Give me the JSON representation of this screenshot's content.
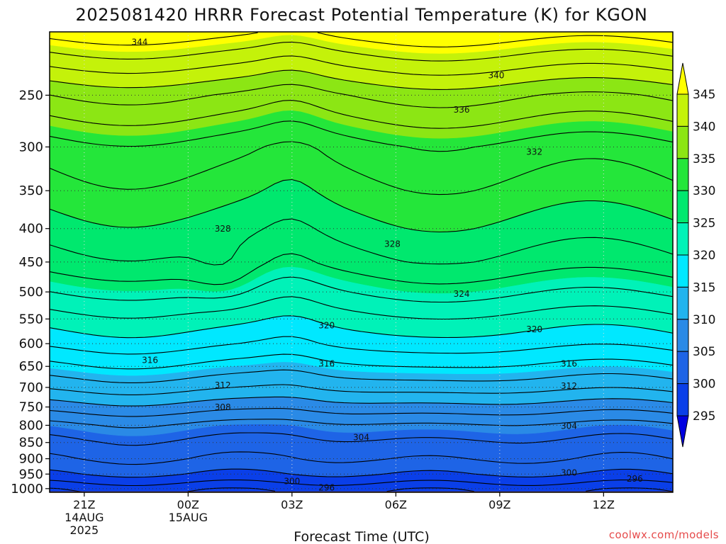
{
  "chart_data": {
    "type": "heatmap",
    "title": "2025081420 HRRR Forecast Potential Temperature (K) for KGON",
    "xlabel": "Forecast Time (UTC)",
    "ylabel": "",
    "x_ticks": [
      {
        "hour": 21,
        "label": "21Z",
        "sub1": "14AUG",
        "sub2": "2025"
      },
      {
        "hour": 24,
        "label": "00Z",
        "sub1": "15AUG",
        "sub2": ""
      },
      {
        "hour": 27,
        "label": "03Z",
        "sub1": "",
        "sub2": ""
      },
      {
        "hour": 30,
        "label": "06Z",
        "sub1": "",
        "sub2": ""
      },
      {
        "hour": 33,
        "label": "09Z",
        "sub1": "",
        "sub2": ""
      },
      {
        "hour": 36,
        "label": "12Z",
        "sub1": "",
        "sub2": ""
      }
    ],
    "xlim_hours": [
      20,
      38
    ],
    "y_scale": "log-pressure",
    "y_ticks": [
      250,
      300,
      350,
      400,
      450,
      500,
      550,
      600,
      650,
      700,
      750,
      800,
      850,
      900,
      950,
      1000
    ],
    "ylim_hpa": [
      200,
      1013
    ],
    "colorbar": {
      "levels": [
        295,
        300,
        305,
        310,
        315,
        320,
        325,
        330,
        335,
        340,
        345
      ],
      "colors": [
        "#0000e0",
        "#0a3fe8",
        "#1e64e6",
        "#2a8ae6",
        "#22b4ee",
        "#00e8ff",
        "#00f2b8",
        "#00e86e",
        "#24e63a",
        "#8ce614",
        "#c4f20a",
        "#ffff00"
      ]
    },
    "surface_color": "#a0522d",
    "contour_labels": [
      {
        "value": "344",
        "hour": 22.6,
        "p": 207
      },
      {
        "value": "340",
        "hour": 32.9,
        "p": 233
      },
      {
        "value": "336",
        "hour": 31.9,
        "p": 263
      },
      {
        "value": "332",
        "hour": 34.0,
        "p": 305
      },
      {
        "value": "328",
        "hour": 25.0,
        "p": 400
      },
      {
        "value": "328",
        "hour": 29.9,
        "p": 422
      },
      {
        "value": "324",
        "hour": 31.9,
        "p": 503
      },
      {
        "value": "320",
        "hour": 28.0,
        "p": 562
      },
      {
        "value": "320",
        "hour": 34.0,
        "p": 570
      },
      {
        "value": "316",
        "hour": 22.9,
        "p": 635
      },
      {
        "value": "316",
        "hour": 28.0,
        "p": 643
      },
      {
        "value": "316",
        "hour": 35.0,
        "p": 643
      },
      {
        "value": "312",
        "hour": 25.0,
        "p": 694
      },
      {
        "value": "312",
        "hour": 35.0,
        "p": 696
      },
      {
        "value": "308",
        "hour": 25.0,
        "p": 750
      },
      {
        "value": "304",
        "hour": 29.0,
        "p": 834
      },
      {
        "value": "304",
        "hour": 35.0,
        "p": 801
      },
      {
        "value": "300",
        "hour": 27.0,
        "p": 973
      },
      {
        "value": "300",
        "hour": 35.0,
        "p": 945
      },
      {
        "value": "296",
        "hour": 28.0,
        "p": 995
      },
      {
        "value": "296",
        "hour": 36.9,
        "p": 965
      }
    ]
  },
  "footer": {
    "credit": "coolwx.com/models"
  }
}
